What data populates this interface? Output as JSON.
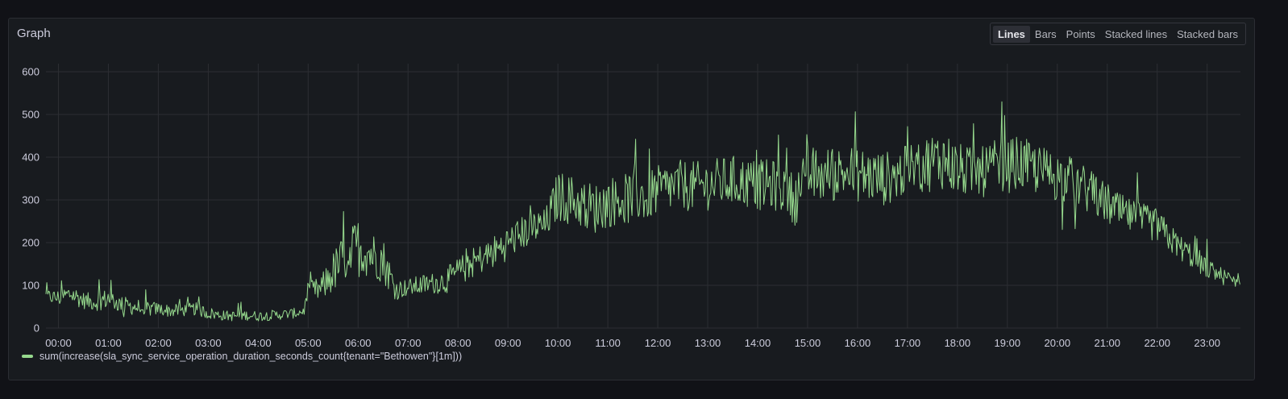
{
  "panel": {
    "title": "Graph",
    "modes": [
      "Lines",
      "Bars",
      "Points",
      "Stacked lines",
      "Stacked bars"
    ],
    "active_mode": "Lines"
  },
  "colors": {
    "series": "#96d98d",
    "grid": "#2c2e33",
    "tick_label": "#ccccdc",
    "background": "#181b1f"
  },
  "chart_data": {
    "type": "line",
    "title": "",
    "xlabel": "",
    "ylabel": "",
    "xlim": [
      "23:45",
      "23:40"
    ],
    "ylim": [
      0,
      600
    ],
    "yticks": [
      0,
      100,
      200,
      300,
      400,
      500,
      600
    ],
    "xticks": [
      "00:00",
      "01:00",
      "02:00",
      "03:00",
      "04:00",
      "05:00",
      "06:00",
      "07:00",
      "08:00",
      "09:00",
      "10:00",
      "11:00",
      "12:00",
      "13:00",
      "14:00",
      "15:00",
      "16:00",
      "17:00",
      "18:00",
      "19:00",
      "20:00",
      "21:00",
      "22:00",
      "23:00"
    ],
    "grid": true,
    "legend_position": "bottom-left",
    "series": [
      {
        "name": "sum(increase(sla_sync_service_operation_duration_seconds_count{tenant=\"Bethowen\"}[1m]))",
        "x": [
          "23:45",
          "00:00",
          "00:15",
          "00:30",
          "00:45",
          "01:00",
          "01:15",
          "01:30",
          "01:45",
          "02:00",
          "02:15",
          "02:30",
          "02:45",
          "03:00",
          "03:15",
          "03:30",
          "03:45",
          "04:00",
          "04:15",
          "04:30",
          "04:45",
          "04:55",
          "05:00",
          "05:15",
          "05:30",
          "05:45",
          "06:00",
          "06:15",
          "06:30",
          "06:45",
          "07:00",
          "07:15",
          "07:30",
          "07:45",
          "08:00",
          "08:15",
          "08:30",
          "08:45",
          "09:00",
          "09:15",
          "09:30",
          "09:45",
          "10:00",
          "10:15",
          "10:30",
          "10:45",
          "11:00",
          "11:15",
          "11:30",
          "11:45",
          "12:00",
          "12:15",
          "12:30",
          "12:45",
          "13:00",
          "13:15",
          "13:30",
          "13:45",
          "14:00",
          "14:15",
          "14:30",
          "14:45",
          "15:00",
          "15:15",
          "15:30",
          "15:45",
          "16:00",
          "16:15",
          "16:30",
          "16:45",
          "17:00",
          "17:15",
          "17:30",
          "17:45",
          "18:00",
          "18:15",
          "18:30",
          "18:45",
          "19:00",
          "19:15",
          "19:30",
          "19:45",
          "20:00",
          "20:15",
          "20:30",
          "20:45",
          "21:00",
          "21:15",
          "21:30",
          "21:45",
          "22:00",
          "22:15",
          "22:30",
          "22:45",
          "23:00",
          "23:15",
          "23:30",
          "23:40"
        ],
        "y": [
          75,
          70,
          80,
          65,
          60,
          70,
          55,
          50,
          45,
          45,
          40,
          42,
          45,
          35,
          30,
          28,
          30,
          28,
          30,
          32,
          35,
          40,
          85,
          90,
          130,
          170,
          190,
          175,
          160,
          90,
          95,
          100,
          105,
          110,
          130,
          150,
          165,
          180,
          200,
          220,
          235,
          240,
          310,
          300,
          290,
          280,
          295,
          300,
          305,
          310,
          320,
          330,
          335,
          330,
          335,
          340,
          345,
          340,
          335,
          335,
          330,
          300,
          360,
          355,
          360,
          365,
          360,
          355,
          350,
          355,
          370,
          380,
          390,
          395,
          370,
          365,
          365,
          375,
          380,
          385,
          375,
          365,
          355,
          345,
          330,
          310,
          290,
          270,
          260,
          250,
          240,
          210,
          185,
          165,
          140,
          125,
          110,
          120
        ],
        "jitter": [
          15,
          20,
          25,
          20,
          20,
          25,
          20,
          20,
          20,
          15,
          15,
          15,
          15,
          15,
          12,
          12,
          12,
          12,
          12,
          12,
          12,
          12,
          25,
          30,
          50,
          60,
          70,
          55,
          55,
          25,
          20,
          25,
          25,
          30,
          35,
          35,
          35,
          40,
          40,
          40,
          40,
          40,
          60,
          60,
          60,
          60,
          60,
          60,
          60,
          60,
          60,
          60,
          60,
          60,
          60,
          60,
          60,
          60,
          60,
          60,
          60,
          60,
          70,
          65,
          65,
          65,
          65,
          65,
          65,
          60,
          60,
          65,
          70,
          70,
          65,
          60,
          60,
          65,
          65,
          65,
          60,
          60,
          60,
          60,
          55,
          50,
          50,
          45,
          40,
          40,
          40,
          35,
          30,
          30,
          25,
          20,
          20,
          20
        ]
      }
    ]
  }
}
